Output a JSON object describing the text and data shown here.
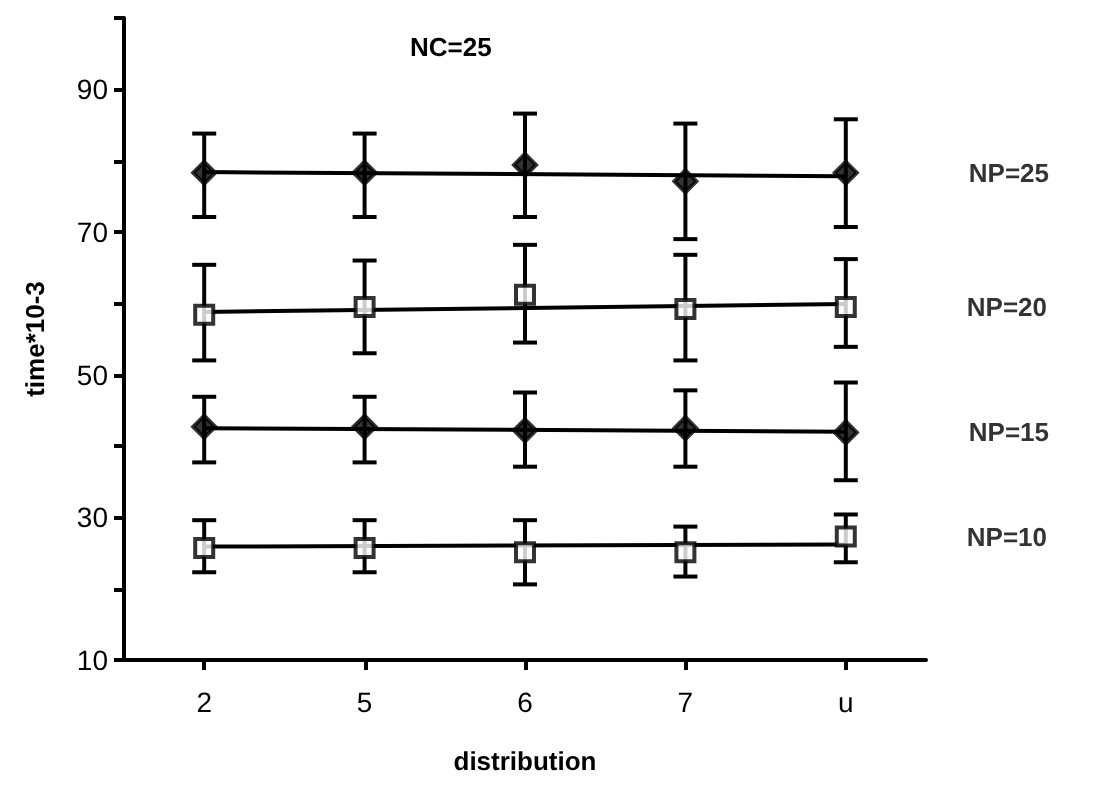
{
  "chart_data": {
    "type": "scatter",
    "title": "NC=25",
    "xlabel": "distribution",
    "ylabel": "time*10-3",
    "categories": [
      "2",
      "5",
      "6",
      "7",
      "u"
    ],
    "ylim": [
      10,
      100
    ],
    "yticks": [
      10,
      {
        "value": 20,
        "label": null
      },
      30,
      {
        "value": 40,
        "label": null
      },
      50,
      {
        "value": 60,
        "label": null
      },
      70,
      {
        "value": 80,
        "label": null
      },
      90,
      {
        "value": 100,
        "label": null
      }
    ],
    "grid": false,
    "series": [
      {
        "name": "NP=25",
        "color": "#000000",
        "marker": "diamond",
        "values": [
          78.3,
          78.3,
          79.4,
          77.1,
          78.3
        ],
        "errors": [
          [
            72.1,
            83.8
          ],
          [
            72.1,
            83.8
          ],
          [
            72.1,
            86.6
          ],
          [
            69,
            85.2
          ],
          [
            70.7,
            85.8
          ]
        ]
      },
      {
        "name": "NP=20",
        "color": "#000000",
        "marker": "square",
        "values": [
          58.4,
          59.5,
          61.2,
          59.2,
          59.5
        ],
        "errors": [
          [
            52,
            65.4
          ],
          [
            53,
            66
          ],
          [
            54.5,
            68.2
          ],
          [
            52,
            66.8
          ],
          [
            53.9,
            66.2
          ]
        ]
      },
      {
        "name": "NP=15",
        "color": "#000000",
        "marker": "diamond",
        "values": [
          42.7,
          42.7,
          42.2,
          42.5,
          41.9
        ],
        "errors": [
          [
            37.7,
            46.9
          ],
          [
            37.7,
            46.9
          ],
          [
            37.1,
            47.5
          ],
          [
            37.1,
            47.8
          ],
          [
            35.2,
            48.9
          ]
        ]
      },
      {
        "name": "NP=10",
        "color": "#000000",
        "marker": "square",
        "values": [
          25.7,
          25.7,
          25.1,
          25.1,
          27.3
        ],
        "errors": [
          [
            22.3,
            29.6
          ],
          [
            22.3,
            29.6
          ],
          [
            20.6,
            29.6
          ],
          [
            21.7,
            28.7
          ],
          [
            23.7,
            30.4
          ]
        ]
      },
      {
        "type": "line",
        "color": "#000000",
        "marker": "none",
        "x": [
          "2",
          "u"
        ],
        "values": [
          78.4,
          77.8
        ]
      },
      {
        "type": "line",
        "color": "#000000",
        "marker": "none",
        "x": [
          "2",
          "u"
        ],
        "values": [
          58.8,
          59.9
        ]
      },
      {
        "type": "line",
        "color": "#000000",
        "marker": "none",
        "x": [
          "2",
          "u"
        ],
        "values": [
          42.5,
          42.0
        ]
      },
      {
        "type": "line",
        "color": "#000000",
        "marker": "none",
        "x": [
          "2",
          "u"
        ],
        "values": [
          25.9,
          26.2
        ]
      }
    ]
  }
}
